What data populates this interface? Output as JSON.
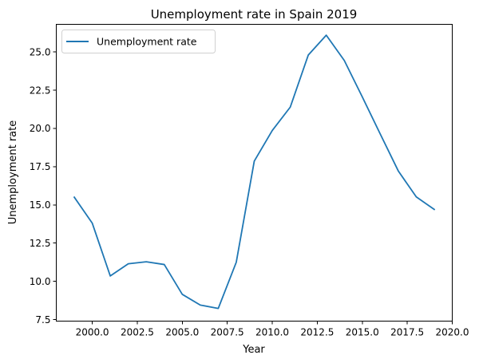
{
  "chart_data": {
    "type": "line",
    "title": "Unemployment rate in Spain 2019",
    "xlabel": "Year",
    "ylabel": "Unemployment rate",
    "xlim": [
      1998.0,
      2020.0
    ],
    "ylim": [
      7.4,
      26.8
    ],
    "xticks": [
      2000.0,
      2002.5,
      2005.0,
      2007.5,
      2010.0,
      2012.5,
      2015.0,
      2017.5,
      2020.0
    ],
    "xtick_labels": [
      "2000.0",
      "2002.5",
      "2005.0",
      "2007.5",
      "2010.0",
      "2012.5",
      "2015.0",
      "2017.5",
      "2020.0"
    ],
    "yticks": [
      7.5,
      10.0,
      12.5,
      15.0,
      17.5,
      20.0,
      22.5,
      25.0
    ],
    "ytick_labels": [
      "7.5",
      "10.0",
      "12.5",
      "15.0",
      "17.5",
      "20.0",
      "22.5",
      "25.0"
    ],
    "grid": false,
    "legend_position": "top-left",
    "series": [
      {
        "name": "Unemployment rate",
        "color": "#1f77b4",
        "x": [
          1999,
          2000,
          2001,
          2002,
          2003,
          2004,
          2005,
          2006,
          2007,
          2008,
          2009,
          2010,
          2011,
          2012,
          2013,
          2014,
          2015,
          2016,
          2017,
          2018,
          2019
        ],
        "y": [
          15.5,
          13.8,
          10.35,
          11.15,
          11.28,
          11.1,
          9.15,
          8.45,
          8.23,
          11.25,
          17.86,
          19.86,
          21.39,
          24.79,
          26.09,
          24.44,
          22.06,
          19.63,
          17.22,
          15.52,
          14.7
        ]
      }
    ]
  }
}
